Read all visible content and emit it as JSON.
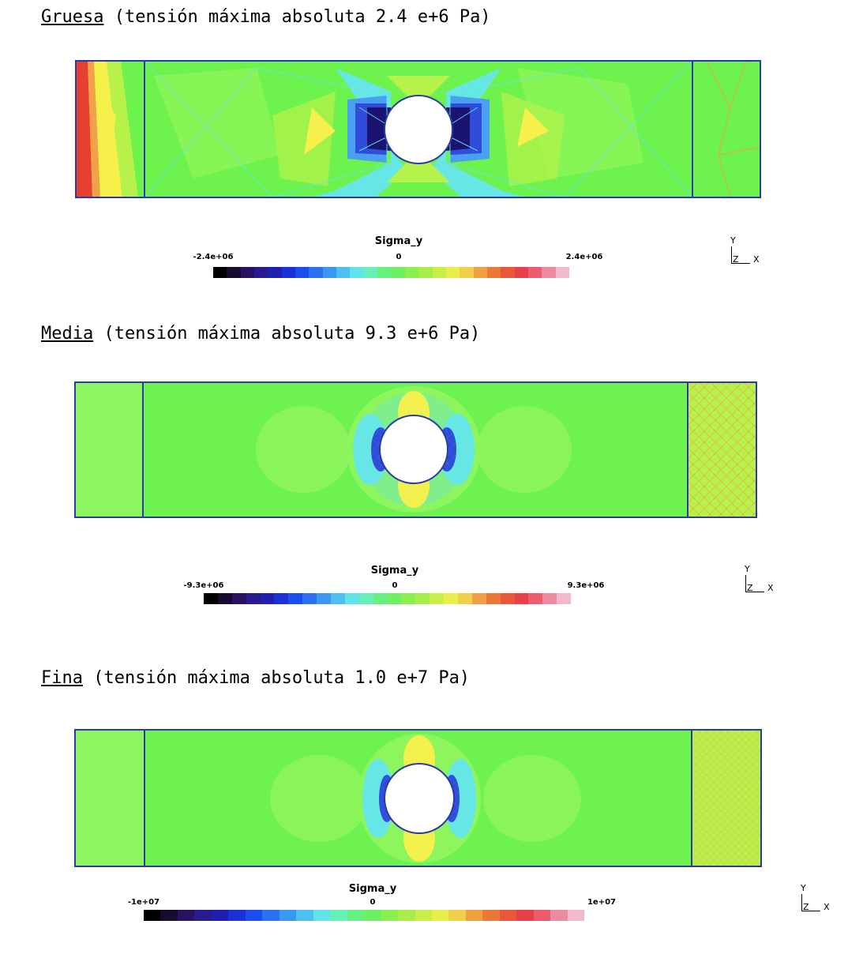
{
  "colors": {
    "bg_green": "#6ef24d",
    "light_green": "#8ef55a",
    "yellow_green": "#b6f24a",
    "yellow": "#f5f04a",
    "cyan": "#67e6e6",
    "blue": "#2f4dd8",
    "dark_blue": "#1a1370",
    "outline": "#2a3aa6",
    "orange": "#f2a04a",
    "red": "#e84030"
  },
  "colorbar_palette": [
    "#000000",
    "#180a30",
    "#2a1260",
    "#2a1a90",
    "#2020b0",
    "#1a30d8",
    "#1a4ef0",
    "#2a70f0",
    "#3a98f0",
    "#4ec0f0",
    "#60e4e8",
    "#66f0b8",
    "#66f080",
    "#6ef060",
    "#8af050",
    "#a8ee48",
    "#c8ee48",
    "#e8ee4a",
    "#f0d048",
    "#f0a040",
    "#ec7838",
    "#e85838",
    "#e84048",
    "#ec5c6c",
    "#ee8aa0",
    "#f2b8cc"
  ],
  "sections": [
    {
      "id": "gruesa",
      "label": "Gruesa",
      "rest": " (tensión máxima absoluta 2.4 e+6 Pa)",
      "colorbar_title": "Sigma_y",
      "tick_min": "-2.4e+06",
      "tick_mid": "0",
      "tick_max": "2.4e+06",
      "axis_y": "Y",
      "axis_z": "Z",
      "axis_x": "X"
    },
    {
      "id": "media",
      "label": "Media",
      "rest": " (tensión máxima absoluta 9.3 e+6 Pa)",
      "colorbar_title": "Sigma_y",
      "tick_min": "-9.3e+06",
      "tick_mid": "0",
      "tick_max": "9.3e+06",
      "axis_y": "Y",
      "axis_z": "Z",
      "axis_x": "X"
    },
    {
      "id": "fina",
      "label": "Fina",
      "rest": " (tensión máxima absoluta 1.0 e+7 Pa)",
      "colorbar_title": "Sigma_y",
      "tick_min": "-1e+07",
      "tick_mid": "0",
      "tick_max": "1e+07",
      "axis_y": "Y",
      "axis_z": "Z",
      "axis_x": "X"
    }
  ]
}
